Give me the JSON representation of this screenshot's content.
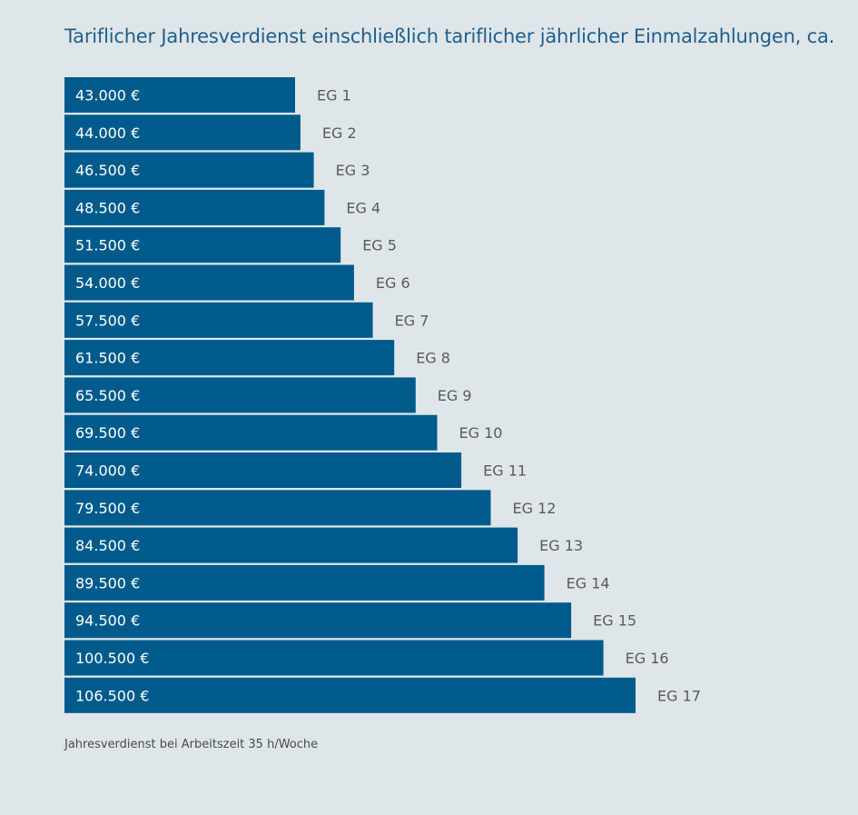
{
  "chart_data": {
    "type": "bar",
    "orientation": "horizontal",
    "title": "Tariflicher Jahresverdienst einschließlich tariflicher jährlicher Einmalzahlungen, ca.",
    "categories": [
      "EG 1",
      "EG 2",
      "EG 3",
      "EG 4",
      "EG 5",
      "EG 6",
      "EG 7",
      "EG 8",
      "EG 9",
      "EG 10",
      "EG 11",
      "EG 12",
      "EG 13",
      "EG 14",
      "EG 15",
      "EG 16",
      "EG 17"
    ],
    "values": [
      43000,
      44000,
      46500,
      48500,
      51500,
      54000,
      57500,
      61500,
      65500,
      69500,
      74000,
      79500,
      84500,
      89500,
      94500,
      100500,
      106500
    ],
    "value_labels": [
      "43.000 €",
      "44.000 €",
      "46.500 €",
      "48.500 €",
      "51.500 €",
      "54.000 €",
      "57.500 €",
      "61.500 €",
      "65.500 €",
      "69.500 €",
      "74.000 €",
      "79.500 €",
      "84.500 €",
      "89.500 €",
      "94.500 €",
      "100.500 €",
      "106.500 €"
    ],
    "xlim": [
      0,
      106500
    ],
    "grid": false,
    "legend": "none",
    "footnote": "Jahresverdienst bei Arbeitszeit 35 h/Woche",
    "colors": {
      "bar": "#005b8c",
      "bar_label": "#ffffff",
      "category_label": "#5a5a5a",
      "title": "#1f5f8e",
      "background": "#dfe6e9"
    }
  }
}
